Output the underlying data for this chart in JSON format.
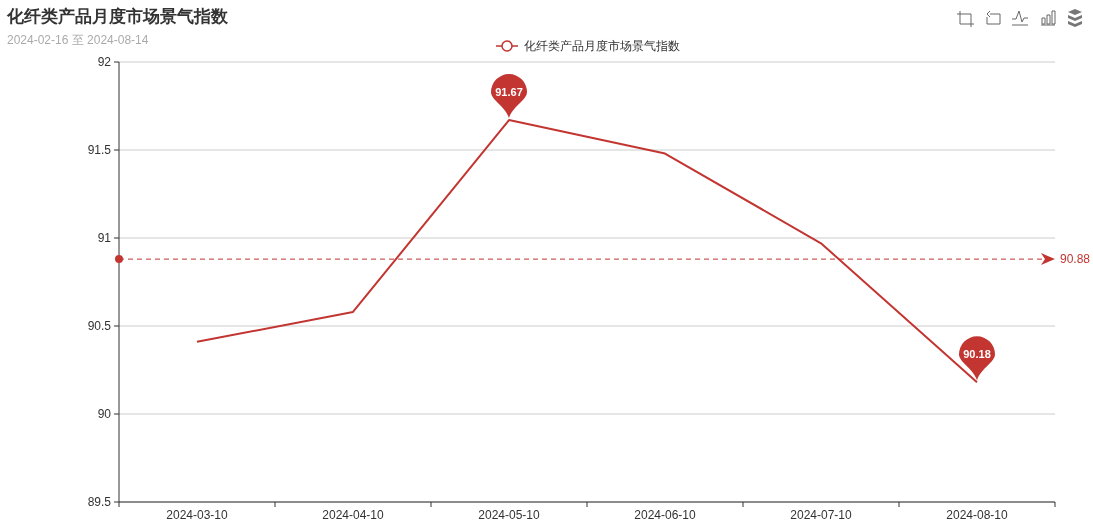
{
  "chart_data": {
    "type": "line",
    "title": "化纤类产品月度市场景气指数",
    "subtitle": "2024-02-16 至 2024-08-14",
    "categories": [
      "2024-03-10",
      "2024-04-10",
      "2024-05-10",
      "2024-06-10",
      "2024-07-10",
      "2024-08-10"
    ],
    "series": [
      {
        "name": "化纤类产品月度市场景气指数",
        "color": "#c23531",
        "values": [
          90.41,
          90.58,
          91.67,
          91.48,
          90.97,
          90.18
        ]
      }
    ],
    "ylim": [
      89.5,
      92
    ],
    "yticks": [
      89.5,
      90,
      90.5,
      91,
      91.5,
      92
    ],
    "grid": "y",
    "legend": "top",
    "marker": "none",
    "line_style": "solid",
    "annotations": [
      {
        "text": "91.67",
        "x": "2024-05-10",
        "y": 91.67
      },
      {
        "text": "90.18",
        "x": "2024-08-10",
        "y": 90.18
      }
    ],
    "ref_lines": [
      {
        "axis": "y",
        "value": 90.88,
        "label": "90.88",
        "color": "#c23531",
        "line_style": "dashed"
      }
    ]
  }
}
